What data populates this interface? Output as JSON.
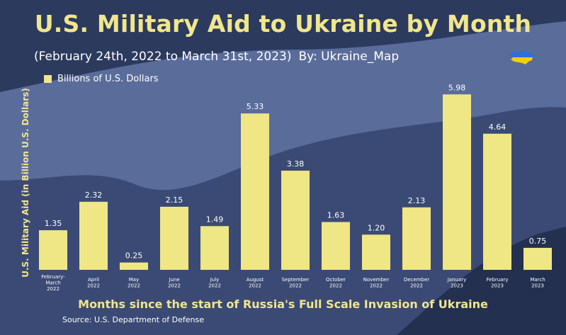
{
  "chart_data": {
    "type": "bar",
    "title": "U.S. Military Aid to Ukraine by Month",
    "subtitle": "(February 24th, 2022 to March 31st, 2023)",
    "byline": "By: Ukraine_Map",
    "legend": "Billions of U.S. Dollars",
    "ylabel": "U.S. Military Aid (in Billion U.S. Dollars)",
    "xlabel": "Months since the start of Russia's Full Scale Invasion of Ukraine",
    "source": "Source: U.S. Department of Defense",
    "categories": [
      [
        "February-",
        "March",
        "2022"
      ],
      [
        "April",
        "2022"
      ],
      [
        "May",
        "2022"
      ],
      [
        "June",
        "2022"
      ],
      [
        "July",
        "2022"
      ],
      [
        "August",
        "2022"
      ],
      [
        "September",
        "2022"
      ],
      [
        "October",
        "2022"
      ],
      [
        "November",
        "2022"
      ],
      [
        "December",
        "2022"
      ],
      [
        "January",
        "2023"
      ],
      [
        "February",
        "2023"
      ],
      [
        "March",
        "2023"
      ]
    ],
    "values": [
      1.35,
      2.32,
      0.25,
      2.15,
      1.49,
      5.33,
      3.38,
      1.63,
      1.2,
      2.13,
      5.98,
      4.64,
      0.75
    ],
    "value_labels": [
      "1.35",
      "2.32",
      "0.25",
      "2.15",
      "1.49",
      "5.33",
      "3.38",
      "1.63",
      "1.20",
      "2.13",
      "5.98",
      "4.64",
      "0.75"
    ],
    "ylim": [
      0,
      6.3
    ],
    "grid": false,
    "legend_position": "top-left",
    "colors": {
      "bar": "#efe685",
      "title": "#f0e68c",
      "background": "#2c3a5e"
    }
  }
}
